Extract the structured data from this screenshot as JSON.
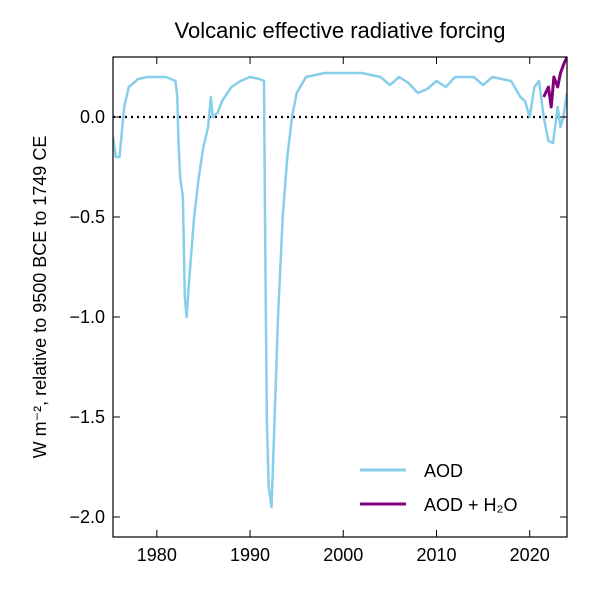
{
  "chart_data": {
    "type": "line",
    "title": "Volcanic effective radiative forcing",
    "y_label": "W m⁻², relative to 9500 BCE to 1749 CE",
    "xlim": [
      1975.3,
      2024
    ],
    "xticks": [
      1980,
      1990,
      2000,
      2010,
      2020
    ],
    "ylim": [
      -2.1,
      0.3
    ],
    "yticks": [
      {
        "value": 0,
        "label": "0.0"
      },
      {
        "value": -0.5,
        "label": "−0.5"
      },
      {
        "value": -1,
        "label": "−1.0"
      },
      {
        "value": -1.5,
        "label": "−1.5"
      },
      {
        "value": -2,
        "label": "−2.0"
      }
    ],
    "hline": 0,
    "legend": "lower right",
    "series": [
      {
        "name": "AOD",
        "color": "#87ceeb",
        "x": [
          1975.3,
          1975.6,
          1976,
          1976.5,
          1977,
          1978,
          1979,
          1980,
          1981,
          1982,
          1982.2,
          1982.3,
          1982.5,
          1982.8,
          1983,
          1983.2,
          1983.5,
          1984,
          1984.5,
          1985,
          1985.5,
          1985.8,
          1986,
          1986.5,
          1987,
          1988,
          1989,
          1990,
          1991,
          1991.5,
          1991.6,
          1991.8,
          1992,
          1992.3,
          1992.5,
          1993,
          1993.5,
          1994,
          1994.5,
          1995,
          1996,
          1998,
          2000,
          2002,
          2004,
          2005,
          2006,
          2007,
          2008,
          2009,
          2010,
          2011,
          2012,
          2014,
          2015,
          2016,
          2018,
          2019,
          2019.5,
          2020,
          2020.5,
          2021,
          2021.5,
          2022,
          2022.5,
          2023,
          2023.3,
          2023.6,
          2024
        ],
        "values": [
          -0.1,
          -0.2,
          -0.2,
          0.05,
          0.15,
          0.19,
          0.2,
          0.2,
          0.2,
          0.18,
          0.1,
          -0.1,
          -0.3,
          -0.4,
          -0.9,
          -1.0,
          -0.8,
          -0.5,
          -0.3,
          -0.15,
          -0.05,
          0.1,
          0.0,
          0.02,
          0.08,
          0.15,
          0.18,
          0.2,
          0.19,
          0.18,
          -0.5,
          -1.5,
          -1.85,
          -1.95,
          -1.7,
          -1.0,
          -0.5,
          -0.2,
          0.0,
          0.12,
          0.2,
          0.22,
          0.22,
          0.22,
          0.2,
          0.16,
          0.2,
          0.17,
          0.12,
          0.14,
          0.18,
          0.15,
          0.2,
          0.2,
          0.16,
          0.2,
          0.18,
          0.1,
          0.08,
          0.0,
          0.15,
          0.18,
          0.0,
          -0.12,
          -0.13,
          0.05,
          -0.05,
          0.0,
          0.12
        ]
      },
      {
        "name": "AOD + H₂O",
        "color": "#800080",
        "x": [
          2021.5,
          2022,
          2022.3,
          2022.6,
          2023,
          2023.3,
          2023.7,
          2024
        ],
        "values": [
          0.1,
          0.15,
          0.05,
          0.2,
          0.15,
          0.22,
          0.27,
          0.3
        ]
      }
    ]
  }
}
